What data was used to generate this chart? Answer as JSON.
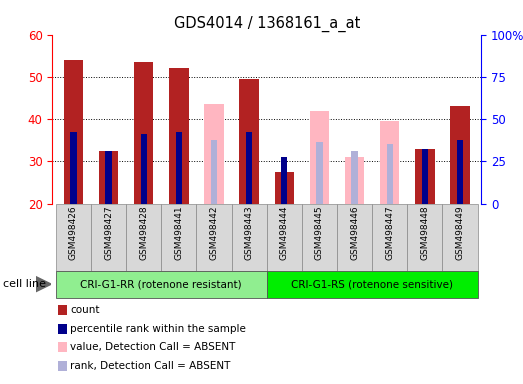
{
  "title": "GDS4014 / 1368161_a_at",
  "samples": [
    "GSM498426",
    "GSM498427",
    "GSM498428",
    "GSM498441",
    "GSM498442",
    "GSM498443",
    "GSM498444",
    "GSM498445",
    "GSM498446",
    "GSM498447",
    "GSM498448",
    "GSM498449"
  ],
  "ylim_left": [
    20,
    60
  ],
  "ylim_right": [
    0,
    100
  ],
  "yticks_left": [
    20,
    30,
    40,
    50,
    60
  ],
  "yticks_right": [
    0,
    25,
    50,
    75,
    100
  ],
  "count_values": [
    54.0,
    32.5,
    53.5,
    52.0,
    null,
    49.5,
    27.5,
    null,
    null,
    null,
    33.0,
    43.0
  ],
  "rank_values": [
    37.0,
    32.5,
    36.5,
    37.0,
    null,
    37.0,
    31.0,
    null,
    null,
    null,
    33.0,
    35.0
  ],
  "absent_value_values": [
    null,
    null,
    null,
    null,
    43.5,
    null,
    null,
    42.0,
    31.0,
    39.5,
    null,
    null
  ],
  "absent_rank_values": [
    null,
    null,
    null,
    null,
    35.0,
    null,
    null,
    34.5,
    32.5,
    34.0,
    null,
    null
  ],
  "count_color": "#b22222",
  "rank_color": "#00008b",
  "absent_value_color": "#ffb6c1",
  "absent_rank_color": "#b0b0d8",
  "group1_label": "CRI-G1-RR (rotenone resistant)",
  "group2_label": "CRI-G1-RS (rotenone sensitive)",
  "group1_color": "#90ee90",
  "group2_color": "#00ee00",
  "group1_range": [
    0,
    6
  ],
  "group2_range": [
    6,
    12
  ],
  "cell_line_label": "cell line",
  "legend_items": [
    {
      "label": "count",
      "color": "#b22222"
    },
    {
      "label": "percentile rank within the sample",
      "color": "#00008b"
    },
    {
      "label": "value, Detection Call = ABSENT",
      "color": "#ffb6c1"
    },
    {
      "label": "rank, Detection Call = ABSENT",
      "color": "#b0b0d8"
    }
  ],
  "bar_width": 0.55,
  "rank_bar_width": 0.18,
  "gridlines": [
    30,
    40,
    50
  ]
}
